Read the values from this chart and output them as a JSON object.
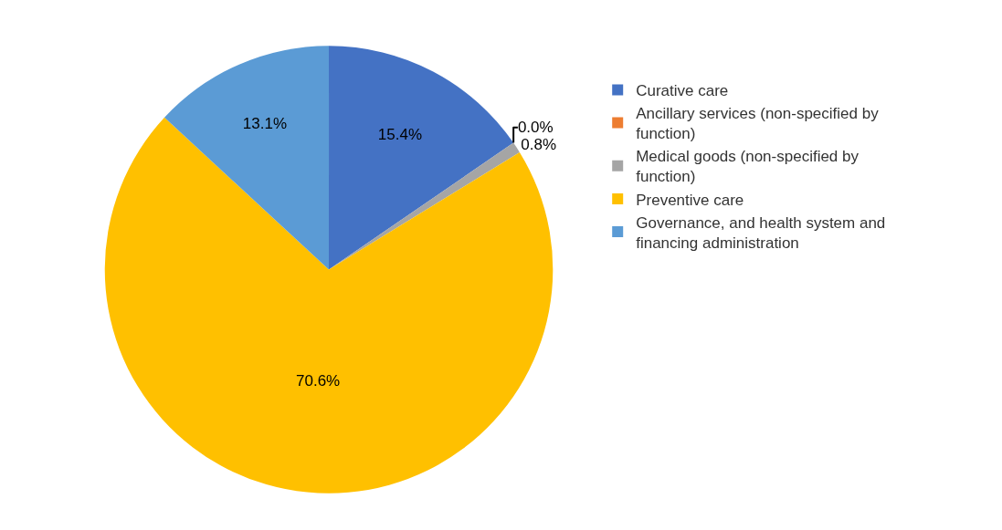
{
  "chart_data": {
    "type": "pie",
    "categories": [
      "Curative care",
      "Ancillary services (non-specified by function)",
      "Medical goods (non-specified by function)",
      "Preventive care",
      "Governance, and health system and financing administration"
    ],
    "values": [
      15.4,
      0.0,
      0.8,
      70.6,
      13.1
    ],
    "value_labels": [
      "15.4%",
      "0.0%",
      "0.8%",
      "70.6%",
      "13.1%"
    ],
    "colors": [
      "#4472c4",
      "#ed7d31",
      "#a5a5a5",
      "#ffc000",
      "#5b9bd5"
    ],
    "legend": "right"
  }
}
